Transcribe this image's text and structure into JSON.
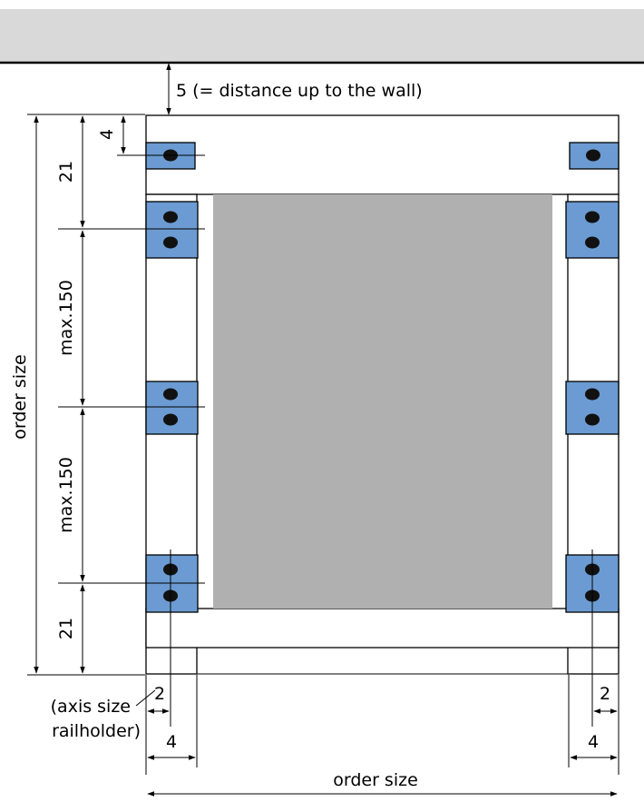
{
  "labels": {
    "top_gap": "5  (= distance up to the wall)",
    "top_bracket_offset": "4",
    "end_spacing_top": "21",
    "max_spacing_upper": "max.150",
    "max_spacing_lower": "max.150",
    "end_spacing_bottom": "21",
    "order_size_vertical": "order size",
    "order_size_horizontal": "order size",
    "axis_left": "2",
    "axis_right": "2",
    "rail_width_left": "4",
    "rail_width_right": "4",
    "axis_note_line1": "(axis size",
    "axis_note_line2": "railholder)"
  },
  "colors": {
    "wall": "#d9d9d9",
    "panel": "#b0b0b0",
    "bracket": "#6b9bd2",
    "hole": "#111111"
  }
}
